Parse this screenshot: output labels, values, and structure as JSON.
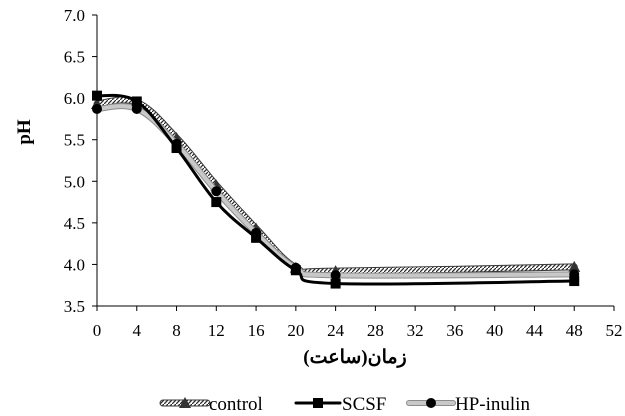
{
  "chart_data": {
    "type": "line",
    "ylabel": "pH",
    "xlabel": "زمان(ساعت)",
    "xlim": [
      0,
      52
    ],
    "ylim": [
      3.5,
      7.0
    ],
    "xticks": [
      0,
      4,
      8,
      12,
      16,
      20,
      24,
      28,
      32,
      36,
      40,
      44,
      48,
      52
    ],
    "yticks": [
      "3.5",
      "4.0",
      "4.5",
      "5.0",
      "5.5",
      "6.0",
      "6.5",
      "7.0"
    ],
    "legend_position": "bottom",
    "grid": false,
    "series": [
      {
        "name": "control",
        "color": "#6a6a6a",
        "marker": "triangle",
        "style": "hatched",
        "points": [
          [
            0,
            5.93
          ],
          [
            4,
            5.95
          ],
          [
            8,
            5.52
          ],
          [
            12,
            4.95
          ],
          [
            16,
            4.43
          ],
          [
            20,
            3.96
          ],
          [
            24,
            3.92
          ],
          [
            48,
            3.97
          ]
        ]
      },
      {
        "name": "SCSF",
        "color": "#000000",
        "marker": "square",
        "style": "solid",
        "points": [
          [
            0,
            6.03
          ],
          [
            4,
            5.96
          ],
          [
            8,
            5.4
          ],
          [
            12,
            4.75
          ],
          [
            16,
            4.32
          ],
          [
            20,
            3.93
          ],
          [
            24,
            3.77
          ],
          [
            48,
            3.8
          ]
        ]
      },
      {
        "name": "HP-inulin",
        "color": "#b0b0b0",
        "marker": "circle",
        "style": "grey",
        "points": [
          [
            0,
            5.87
          ],
          [
            4,
            5.87
          ],
          [
            8,
            5.45
          ],
          [
            12,
            4.88
          ],
          [
            16,
            4.38
          ],
          [
            20,
            3.96
          ],
          [
            24,
            3.87
          ],
          [
            48,
            3.88
          ]
        ]
      }
    ]
  }
}
